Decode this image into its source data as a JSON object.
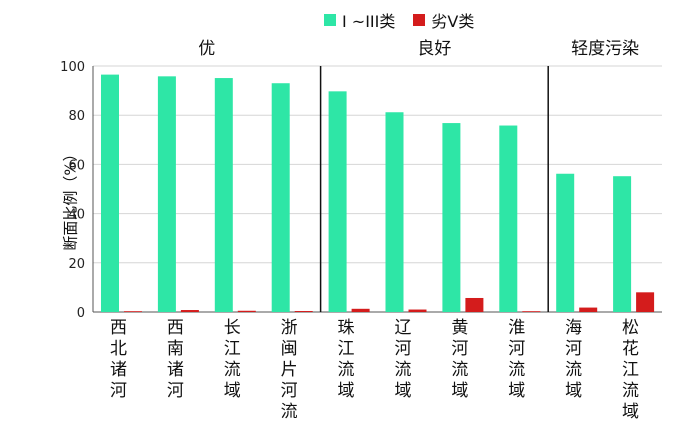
{
  "chart_data": {
    "type": "bar",
    "categories": [
      "西北诸河",
      "西南诸河",
      "长江流域",
      "浙闽片河流",
      "珠江流域",
      "辽河流域",
      "黄河流域",
      "淮河流域",
      "海河流域",
      "松花江流域"
    ],
    "series": [
      {
        "name": "I ~III类",
        "values": [
          96.5,
          95.8,
          95.1,
          93.0,
          89.7,
          81.2,
          76.8,
          75.8,
          56.2,
          55.2
        ],
        "color": "#2ee6a6"
      },
      {
        "name": "劣V类",
        "values": [
          0,
          0.8,
          0.5,
          0.4,
          1.3,
          1.0,
          5.7,
          0.0,
          1.8,
          8.0
        ],
        "color": "#d41c1c"
      }
    ],
    "groups": [
      {
        "label": "优",
        "start": 0,
        "end": 3
      },
      {
        "label": "良好",
        "start": 4,
        "end": 7
      },
      {
        "label": "轻度污染",
        "start": 8,
        "end": 9
      }
    ],
    "ylabel": "断面比例（%）",
    "ylim": [
      0,
      100
    ],
    "yticks": [
      0,
      20,
      40,
      60,
      80,
      100
    ],
    "grid": true,
    "legend": "top-center"
  }
}
